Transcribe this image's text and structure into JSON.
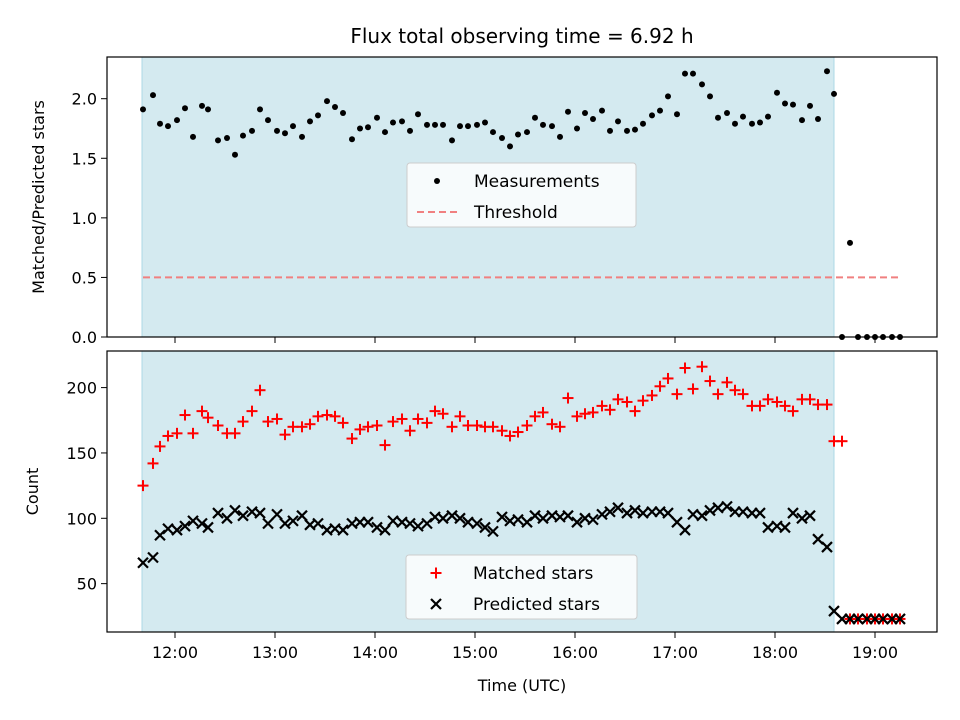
{
  "chart_data": [
    {
      "type": "scatter",
      "title": "Flux total observing time = 6.92 h",
      "ylabel": "Matched/Predicted stars",
      "xlabel": "",
      "xlim": [
        11.32,
        19.62
      ],
      "ylim": [
        0,
        2.35
      ],
      "yticks": [
        0.0,
        0.5,
        1.0,
        1.5,
        2.0
      ],
      "ytick_labels": [
        "0.0",
        "0.5",
        "1.0",
        "1.5",
        "2.0"
      ],
      "shaded_interval": [
        11.67,
        18.59
      ],
      "shade_color": "#d4eaf0",
      "legend_position": "center",
      "series": [
        {
          "name": "Measurements",
          "marker": "dot",
          "color": "#000000",
          "x": [
            11.68,
            11.78,
            11.85,
            11.93,
            12.02,
            12.1,
            12.18,
            12.27,
            12.33,
            12.43,
            12.52,
            12.6,
            12.68,
            12.77,
            12.85,
            12.93,
            13.02,
            13.1,
            13.18,
            13.27,
            13.35,
            13.43,
            13.52,
            13.6,
            13.68,
            13.77,
            13.85,
            13.93,
            14.02,
            14.1,
            14.18,
            14.27,
            14.35,
            14.43,
            14.52,
            14.6,
            14.68,
            14.77,
            14.85,
            14.93,
            15.02,
            15.1,
            15.18,
            15.27,
            15.35,
            15.43,
            15.52,
            15.6,
            15.68,
            15.77,
            15.85,
            15.93,
            16.02,
            16.1,
            16.18,
            16.27,
            16.35,
            16.43,
            16.52,
            16.6,
            16.68,
            16.77,
            16.85,
            16.93,
            17.02,
            17.1,
            17.18,
            17.27,
            17.35,
            17.43,
            17.52,
            17.6,
            17.68,
            17.77,
            17.85,
            17.93,
            18.02,
            18.1,
            18.18,
            18.27,
            18.35,
            18.43,
            18.52,
            18.59,
            18.67,
            18.75,
            18.83,
            18.92,
            19.0,
            19.08,
            19.17,
            19.25
          ],
          "y": [
            1.91,
            2.03,
            1.79,
            1.77,
            1.82,
            1.92,
            1.68,
            1.94,
            1.91,
            1.65,
            1.67,
            1.53,
            1.69,
            1.73,
            1.91,
            1.82,
            1.73,
            1.71,
            1.77,
            1.68,
            1.81,
            1.86,
            1.98,
            1.93,
            1.88,
            1.66,
            1.75,
            1.76,
            1.84,
            1.72,
            1.8,
            1.81,
            1.73,
            1.87,
            1.78,
            1.78,
            1.78,
            1.65,
            1.77,
            1.77,
            1.78,
            1.8,
            1.72,
            1.67,
            1.6,
            1.7,
            1.72,
            1.84,
            1.78,
            1.77,
            1.68,
            1.89,
            1.75,
            1.88,
            1.83,
            1.9,
            1.73,
            1.81,
            1.73,
            1.74,
            1.79,
            1.86,
            1.9,
            2.02,
            1.87,
            2.21,
            2.21,
            2.12,
            2.02,
            1.84,
            1.88,
            1.79,
            1.85,
            1.79,
            1.8,
            1.85,
            2.05,
            1.96,
            1.95,
            1.82,
            1.94,
            1.83,
            2.23,
            2.04,
            0.0,
            0.79,
            0.0,
            0.0,
            0.0,
            0.0,
            0.0,
            0.0
          ]
        },
        {
          "name": "Threshold",
          "marker": "dashed-line",
          "color": "#f08080",
          "x": [
            11.68,
            19.25
          ],
          "y": [
            0.5,
            0.5
          ]
        }
      ]
    },
    {
      "type": "scatter",
      "title": "",
      "ylabel": "Count",
      "xlabel": "Time (UTC)",
      "xlim": [
        11.32,
        19.62
      ],
      "ylim": [
        13,
        228
      ],
      "yticks": [
        50,
        100,
        150,
        200
      ],
      "ytick_labels": [
        "50",
        "100",
        "150",
        "200"
      ],
      "xticks": [
        12,
        13,
        14,
        15,
        16,
        17,
        18,
        19
      ],
      "xtick_labels": [
        "12:00",
        "13:00",
        "14:00",
        "15:00",
        "16:00",
        "17:00",
        "18:00",
        "19:00"
      ],
      "shaded_interval": [
        11.67,
        18.59
      ],
      "shade_color": "#d4eaf0",
      "legend_position": "lower center",
      "series": [
        {
          "name": "Matched stars",
          "marker": "plus",
          "color": "#ff0000",
          "x": [
            11.68,
            11.78,
            11.85,
            11.93,
            12.02,
            12.1,
            12.18,
            12.27,
            12.33,
            12.43,
            12.52,
            12.6,
            12.68,
            12.77,
            12.85,
            12.93,
            13.02,
            13.1,
            13.18,
            13.27,
            13.35,
            13.43,
            13.52,
            13.6,
            13.68,
            13.77,
            13.85,
            13.93,
            14.02,
            14.1,
            14.18,
            14.27,
            14.35,
            14.43,
            14.52,
            14.6,
            14.68,
            14.77,
            14.85,
            14.93,
            15.02,
            15.1,
            15.18,
            15.27,
            15.35,
            15.43,
            15.52,
            15.6,
            15.68,
            15.77,
            15.85,
            15.93,
            16.02,
            16.1,
            16.18,
            16.27,
            16.35,
            16.43,
            16.52,
            16.6,
            16.68,
            16.77,
            16.85,
            16.93,
            17.02,
            17.1,
            17.18,
            17.27,
            17.35,
            17.43,
            17.52,
            17.6,
            17.68,
            17.77,
            17.85,
            17.93,
            18.02,
            18.1,
            18.18,
            18.27,
            18.35,
            18.43,
            18.52,
            18.59,
            18.67,
            18.75,
            18.83,
            18.92,
            19.0,
            19.08,
            19.17,
            19.25
          ],
          "y": [
            125,
            142,
            155,
            163,
            165,
            179,
            165,
            182,
            177,
            171,
            165,
            165,
            174,
            182,
            198,
            174,
            176,
            164,
            170,
            170,
            172,
            178,
            179,
            178,
            173,
            161,
            168,
            170,
            171,
            156,
            174,
            176,
            167,
            176,
            173,
            182,
            180,
            170,
            178,
            171,
            171,
            170,
            170,
            167,
            163,
            166,
            171,
            178,
            181,
            172,
            170,
            192,
            178,
            180,
            181,
            186,
            183,
            191,
            189,
            182,
            190,
            194,
            201,
            207,
            195,
            215,
            199,
            216,
            205,
            195,
            204,
            198,
            195,
            186,
            186,
            191,
            189,
            186,
            182,
            191,
            191,
            187,
            187,
            159,
            159,
            23,
            23,
            23,
            23,
            23,
            23,
            23
          ]
        },
        {
          "name": "Predicted stars",
          "marker": "x",
          "color": "#000000",
          "x": [
            11.68,
            11.78,
            11.85,
            11.93,
            12.02,
            12.1,
            12.18,
            12.27,
            12.33,
            12.43,
            12.52,
            12.6,
            12.68,
            12.77,
            12.85,
            12.93,
            13.02,
            13.1,
            13.18,
            13.27,
            13.35,
            13.43,
            13.52,
            13.6,
            13.68,
            13.77,
            13.85,
            13.93,
            14.02,
            14.1,
            14.18,
            14.27,
            14.35,
            14.43,
            14.52,
            14.6,
            14.68,
            14.77,
            14.85,
            14.93,
            15.02,
            15.1,
            15.18,
            15.27,
            15.35,
            15.43,
            15.52,
            15.6,
            15.68,
            15.77,
            15.85,
            15.93,
            16.02,
            16.1,
            16.18,
            16.27,
            16.35,
            16.43,
            16.52,
            16.6,
            16.68,
            16.77,
            16.85,
            16.93,
            17.02,
            17.1,
            17.18,
            17.27,
            17.35,
            17.43,
            17.52,
            17.6,
            17.68,
            17.77,
            17.85,
            17.93,
            18.02,
            18.1,
            18.18,
            18.27,
            18.35,
            18.43,
            18.52,
            18.59,
            18.67,
            18.75,
            18.83,
            18.92,
            19.0,
            19.08,
            19.17,
            19.25
          ],
          "y": [
            66,
            70,
            87,
            92,
            91,
            94,
            98,
            96,
            93,
            104,
            100,
            106,
            102,
            105,
            104,
            96,
            103,
            96,
            98,
            102,
            95,
            96,
            91,
            92,
            91,
            96,
            97,
            97,
            93,
            91,
            98,
            97,
            96,
            94,
            96,
            101,
            100,
            102,
            100,
            97,
            96,
            93,
            90,
            101,
            98,
            99,
            97,
            102,
            100,
            102,
            101,
            102,
            97,
            100,
            99,
            103,
            105,
            108,
            104,
            106,
            104,
            105,
            105,
            104,
            97,
            91,
            103,
            102,
            106,
            108,
            109,
            105,
            105,
            104,
            104,
            93,
            94,
            93,
            104,
            100,
            102,
            84,
            78,
            29,
            23,
            23,
            23,
            23,
            23,
            23,
            23,
            23
          ]
        }
      ]
    }
  ]
}
